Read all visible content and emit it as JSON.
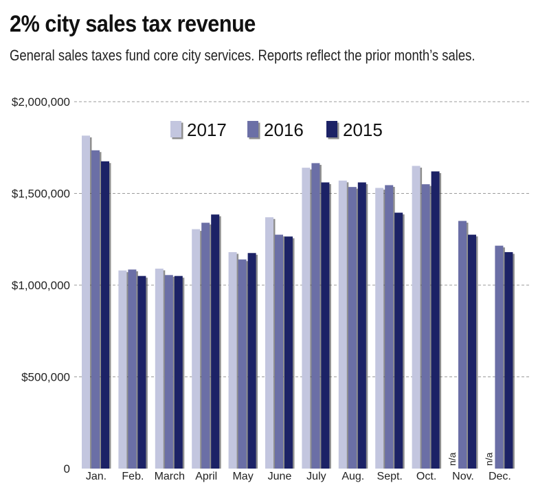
{
  "title": "2% city sales tax revenue",
  "subtitle": "General sales taxes fund core city services. Reports reflect the prior month’s sales.",
  "chart_data": {
    "type": "bar",
    "categories": [
      "Jan.",
      "Feb.",
      "March",
      "April",
      "May",
      "June",
      "July",
      "Aug.",
      "Sept.",
      "Oct.",
      "Nov.",
      "Dec."
    ],
    "series": [
      {
        "name": "2017",
        "color": "#c3c6df",
        "values": [
          1815000,
          1080000,
          1090000,
          1305000,
          1180000,
          1370000,
          1640000,
          1570000,
          1530000,
          1650000,
          null,
          null
        ]
      },
      {
        "name": "2016",
        "color": "#6b6fa6",
        "values": [
          1735000,
          1085000,
          1055000,
          1340000,
          1140000,
          1275000,
          1665000,
          1535000,
          1545000,
          1550000,
          1350000,
          1215000
        ]
      },
      {
        "name": "2015",
        "color": "#1c2266",
        "values": [
          1675000,
          1050000,
          1050000,
          1385000,
          1175000,
          1265000,
          1560000,
          1560000,
          1395000,
          1620000,
          1275000,
          1180000
        ]
      }
    ],
    "ylim": [
      0,
      2000000
    ],
    "yticks": [
      0,
      500000,
      1000000,
      1500000,
      2000000
    ],
    "ytick_labels": [
      "0",
      "$500,000",
      "$1,000,000",
      "$1,500,000",
      "$2,000,000"
    ],
    "missing_label": "n/a",
    "grid": true,
    "legend_position": "top-center"
  }
}
